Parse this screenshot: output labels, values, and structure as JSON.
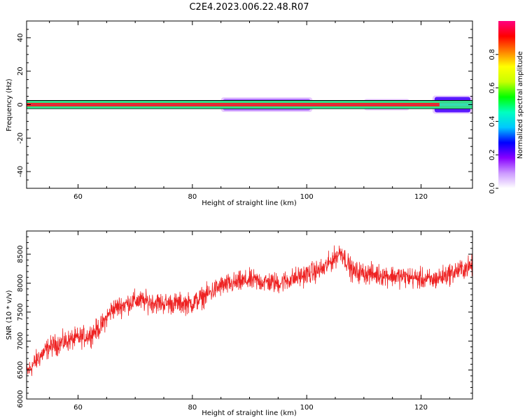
{
  "figure_title": "C2E4.2023.006.22.48.R07",
  "chart_data": [
    {
      "type": "heatmap",
      "xlabel": "Height of straight line (km)",
      "ylabel": "Frequency (Hz)",
      "xlim": [
        51,
        129
      ],
      "ylim": [
        -50,
        50
      ],
      "xticks": [
        60,
        80,
        100,
        120
      ],
      "yticks": [
        -40,
        -20,
        0,
        20,
        40
      ],
      "colorbar": {
        "label": "Normalized spectral amplitude",
        "range": [
          0,
          1
        ],
        "ticks": [
          "0.0",
          "0.2",
          "0.4",
          "0.6",
          "0.8"
        ],
        "colors": [
          "#ffffff",
          "#cc99ff",
          "#8800ff",
          "#0000ff",
          "#00c8ff",
          "#00ffc0",
          "#00ff00",
          "#c8ff00",
          "#ffff00",
          "#ff8000",
          "#ff0000",
          "#ff0080"
        ]
      },
      "band": {
        "center_hz": 0,
        "core_halfwidth_hz": 1,
        "core_color": "#ff1a1a",
        "spread_regions": [
          {
            "x": [
              85,
              101
            ],
            "halfwidth_hz": 4,
            "level": "low"
          },
          {
            "x": [
              110,
              118
            ],
            "halfwidth_hz": 3,
            "level": "low"
          },
          {
            "x": [
              122,
              129
            ],
            "halfwidth_hz": 5,
            "level": "medium"
          }
        ]
      }
    },
    {
      "type": "line",
      "xlabel": "Height of straight line (km)",
      "ylabel": "SNR (10 * v/v)",
      "xlim": [
        51,
        129
      ],
      "ylim": [
        6000,
        8900
      ],
      "xticks": [
        60,
        80,
        100,
        120
      ],
      "yticks": [
        6000,
        6500,
        7000,
        7500,
        8000,
        8500
      ],
      "color": "#ee2222",
      "trend": {
        "x": [
          51,
          53,
          55,
          58,
          62,
          64,
          66,
          70,
          75,
          80,
          85,
          90,
          95,
          100,
          103,
          106,
          108,
          112,
          118,
          122,
          126,
          129
        ],
        "y": [
          6450,
          6700,
          6900,
          7000,
          7100,
          7250,
          7550,
          7700,
          7650,
          7650,
          7950,
          8050,
          8000,
          8150,
          8250,
          8550,
          8200,
          8150,
          8100,
          8050,
          8200,
          8300
        ]
      },
      "noise_amplitude": 150
    }
  ]
}
